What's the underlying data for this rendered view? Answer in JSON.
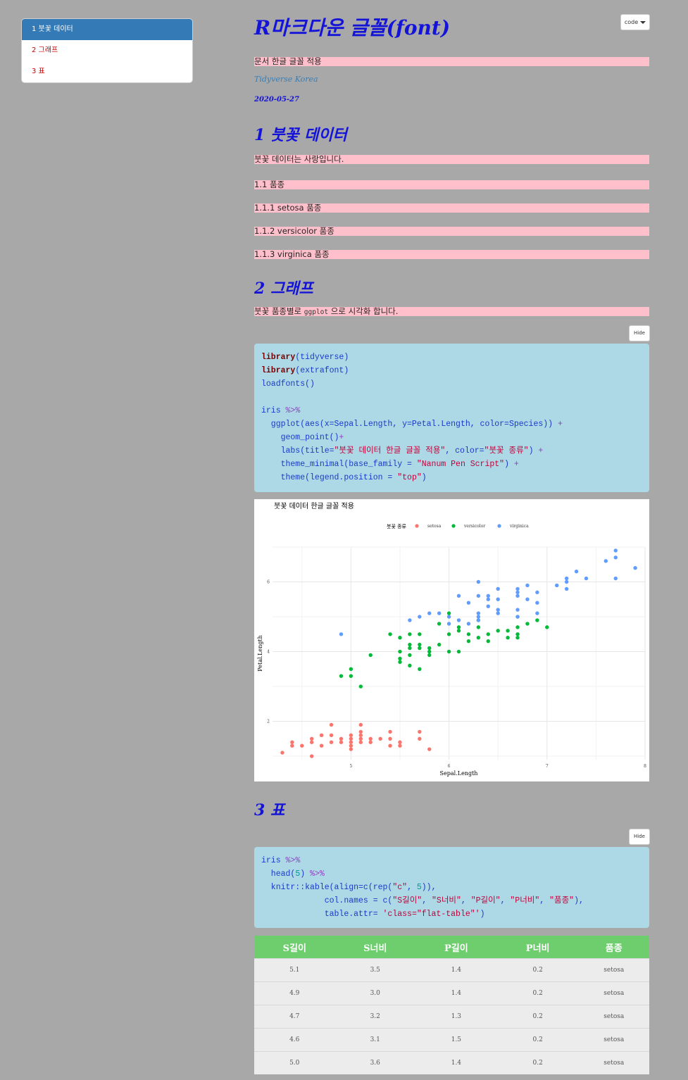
{
  "toc": {
    "items": [
      {
        "label": "1 붓꽃 데이터",
        "active": true
      },
      {
        "label": "2 그래프",
        "active": false
      },
      {
        "label": "3 표",
        "active": false
      }
    ]
  },
  "header": {
    "title": "R마크다운 글꼴(font)",
    "code_button": "code",
    "subtitle": "문서 한글 글꼴 적용",
    "author": "Tidyverse Korea",
    "date": "2020-05-27"
  },
  "section1": {
    "heading": "1 붓꽃 데이터",
    "intro": "붓꽃 데이터는 사랑입니다.",
    "sub1": "1.1 품종",
    "sub11": "1.1.1 setosa 품종",
    "sub12": "1.1.2 versicolor 품종",
    "sub13": "1.1.3 virginica 품종"
  },
  "section2": {
    "heading": "2 그래프",
    "text_before": "붓꽃 품종별로 ",
    "inline_code": "ggplot",
    "text_after": " 으로 시각화 합니다.",
    "hide_button": "Hide",
    "code_lines": [
      [
        [
          "kw",
          "library"
        ],
        [
          "",
          "(tidyverse)"
        ]
      ],
      [
        [
          "kw",
          "library"
        ],
        [
          "",
          "(extrafont)"
        ]
      ],
      [
        [
          "",
          "loadfonts()"
        ]
      ],
      [
        [
          "",
          ""
        ]
      ],
      [
        [
          "",
          "iris "
        ],
        [
          "op",
          "%>%"
        ]
      ],
      [
        [
          "",
          "  ggplot(aes(x=Sepal.Length, y=Petal.Length, color=Species)) "
        ],
        [
          "op",
          "+"
        ]
      ],
      [
        [
          "",
          "    geom_point()"
        ],
        [
          "op",
          "+"
        ]
      ],
      [
        [
          "",
          "    labs(title="
        ],
        [
          "str",
          "\"붓꽃 데이터 한글 글꼴 적용\""
        ],
        [
          "",
          ", color="
        ],
        [
          "str",
          "\"붓꽃 종류\""
        ],
        [
          "",
          ") "
        ],
        [
          "op",
          "+"
        ]
      ],
      [
        [
          "",
          "    theme_minimal(base_family = "
        ],
        [
          "str",
          "\"Nanum Pen Script\""
        ],
        [
          "",
          ") "
        ],
        [
          "op",
          "+"
        ]
      ],
      [
        [
          "",
          "    theme(legend.position = "
        ],
        [
          "str",
          "\"top\""
        ],
        [
          "",
          ")"
        ]
      ]
    ]
  },
  "chart_data": {
    "type": "scatter",
    "title": "붓꽃 데이터 한글 글꼴 적용",
    "xlabel": "Sepal.Length",
    "ylabel": "Petal.Length",
    "legend_title": "붓꽃 종류",
    "legend_position": "top",
    "x_ticks": [
      5,
      6,
      7,
      8
    ],
    "y_ticks": [
      2,
      4,
      6
    ],
    "xlim": [
      4.2,
      8.0
    ],
    "ylim": [
      0.9,
      7.0
    ],
    "grid": true,
    "series": [
      {
        "name": "setosa",
        "color": "#f8766d",
        "points": [
          [
            4.3,
            1.1
          ],
          [
            4.4,
            1.3
          ],
          [
            4.4,
            1.4
          ],
          [
            4.5,
            1.3
          ],
          [
            4.6,
            1.4
          ],
          [
            4.6,
            1.5
          ],
          [
            4.6,
            1.0
          ],
          [
            4.7,
            1.3
          ],
          [
            4.7,
            1.6
          ],
          [
            4.8,
            1.4
          ],
          [
            4.8,
            1.6
          ],
          [
            4.8,
            1.9
          ],
          [
            4.9,
            1.4
          ],
          [
            4.9,
            1.5
          ],
          [
            5.0,
            1.4
          ],
          [
            5.0,
            1.5
          ],
          [
            5.0,
            1.6
          ],
          [
            5.0,
            1.2
          ],
          [
            5.0,
            1.3
          ],
          [
            5.1,
            1.4
          ],
          [
            5.1,
            1.5
          ],
          [
            5.1,
            1.7
          ],
          [
            5.1,
            1.9
          ],
          [
            5.1,
            1.6
          ],
          [
            5.2,
            1.5
          ],
          [
            5.2,
            1.4
          ],
          [
            5.3,
            1.5
          ],
          [
            5.4,
            1.3
          ],
          [
            5.4,
            1.5
          ],
          [
            5.4,
            1.7
          ],
          [
            5.5,
            1.3
          ],
          [
            5.5,
            1.4
          ],
          [
            5.7,
            1.5
          ],
          [
            5.7,
            1.7
          ],
          [
            5.8,
            1.2
          ]
        ]
      },
      {
        "name": "versicolor",
        "color": "#00ba38",
        "points": [
          [
            4.9,
            3.3
          ],
          [
            5.0,
            3.3
          ],
          [
            5.0,
            3.5
          ],
          [
            5.1,
            3.0
          ],
          [
            5.2,
            3.9
          ],
          [
            5.4,
            4.5
          ],
          [
            5.5,
            3.7
          ],
          [
            5.5,
            3.8
          ],
          [
            5.5,
            4.0
          ],
          [
            5.5,
            4.4
          ],
          [
            5.6,
            3.6
          ],
          [
            5.6,
            3.9
          ],
          [
            5.6,
            4.1
          ],
          [
            5.6,
            4.2
          ],
          [
            5.6,
            4.5
          ],
          [
            5.7,
            3.5
          ],
          [
            5.7,
            4.1
          ],
          [
            5.7,
            4.2
          ],
          [
            5.7,
            4.5
          ],
          [
            5.8,
            3.9
          ],
          [
            5.8,
            4.0
          ],
          [
            5.8,
            4.1
          ],
          [
            5.9,
            4.2
          ],
          [
            5.9,
            4.8
          ],
          [
            6.0,
            4.0
          ],
          [
            6.0,
            4.5
          ],
          [
            6.0,
            5.1
          ],
          [
            6.1,
            4.0
          ],
          [
            6.1,
            4.6
          ],
          [
            6.1,
            4.7
          ],
          [
            6.2,
            4.3
          ],
          [
            6.2,
            4.5
          ],
          [
            6.3,
            4.4
          ],
          [
            6.3,
            4.7
          ],
          [
            6.3,
            4.9
          ],
          [
            6.4,
            4.3
          ],
          [
            6.4,
            4.5
          ],
          [
            6.5,
            4.6
          ],
          [
            6.6,
            4.4
          ],
          [
            6.6,
            4.6
          ],
          [
            6.7,
            4.4
          ],
          [
            6.7,
            4.5
          ],
          [
            6.7,
            4.7
          ],
          [
            6.7,
            5.0
          ],
          [
            6.8,
            4.8
          ],
          [
            6.9,
            4.9
          ],
          [
            7.0,
            4.7
          ]
        ]
      },
      {
        "name": "virginica",
        "color": "#619cff",
        "points": [
          [
            4.9,
            4.5
          ],
          [
            5.6,
            4.9
          ],
          [
            5.7,
            5.0
          ],
          [
            5.8,
            5.1
          ],
          [
            5.9,
            5.1
          ],
          [
            6.0,
            4.8
          ],
          [
            6.0,
            5.0
          ],
          [
            6.1,
            4.9
          ],
          [
            6.1,
            5.6
          ],
          [
            6.2,
            4.8
          ],
          [
            6.2,
            5.4
          ],
          [
            6.3,
            4.9
          ],
          [
            6.3,
            5.0
          ],
          [
            6.3,
            5.1
          ],
          [
            6.3,
            5.6
          ],
          [
            6.3,
            6.0
          ],
          [
            6.4,
            5.3
          ],
          [
            6.4,
            5.5
          ],
          [
            6.4,
            5.6
          ],
          [
            6.5,
            5.1
          ],
          [
            6.5,
            5.2
          ],
          [
            6.5,
            5.5
          ],
          [
            6.5,
            5.8
          ],
          [
            6.7,
            5.0
          ],
          [
            6.7,
            5.2
          ],
          [
            6.7,
            5.6
          ],
          [
            6.7,
            5.7
          ],
          [
            6.7,
            5.8
          ],
          [
            6.8,
            5.5
          ],
          [
            6.8,
            5.9
          ],
          [
            6.9,
            5.1
          ],
          [
            6.9,
            5.4
          ],
          [
            6.9,
            5.7
          ],
          [
            7.1,
            5.9
          ],
          [
            7.2,
            5.8
          ],
          [
            7.2,
            6.0
          ],
          [
            7.2,
            6.1
          ],
          [
            7.3,
            6.3
          ],
          [
            7.4,
            6.1
          ],
          [
            7.6,
            6.6
          ],
          [
            7.7,
            6.1
          ],
          [
            7.7,
            6.7
          ],
          [
            7.7,
            6.9
          ],
          [
            7.9,
            6.4
          ]
        ]
      }
    ]
  },
  "section3": {
    "heading": "3 표",
    "hide_button": "Hide",
    "code_lines": [
      [
        [
          "",
          "iris "
        ],
        [
          "op",
          "%>%"
        ]
      ],
      [
        [
          "",
          "  head("
        ],
        [
          "num",
          "5"
        ],
        [
          "",
          ") "
        ],
        [
          "op",
          "%>%"
        ]
      ],
      [
        [
          "",
          "  knitr::kable(align=c(rep("
        ],
        [
          "str",
          "\"c\""
        ],
        [
          "",
          ", "
        ],
        [
          "num",
          "5"
        ],
        [
          "",
          ")),"
        ]
      ],
      [
        [
          "",
          "             col.names = c("
        ],
        [
          "str",
          "\"S길이\""
        ],
        [
          "",
          ", "
        ],
        [
          "str",
          "\"S너비\""
        ],
        [
          "",
          ", "
        ],
        [
          "str",
          "\"P길이\""
        ],
        [
          "",
          ", "
        ],
        [
          "str",
          "\"P너비\""
        ],
        [
          "",
          ", "
        ],
        [
          "str",
          "\"품종\""
        ],
        [
          "",
          "),"
        ]
      ],
      [
        [
          "",
          "             table.attr= "
        ],
        [
          "str",
          "'class=\"flat-table\"'"
        ],
        [
          "",
          ")"
        ]
      ]
    ],
    "table": {
      "headers": [
        "S길이",
        "S너비",
        "P길이",
        "P너비",
        "품종"
      ],
      "rows": [
        [
          "5.1",
          "3.5",
          "1.4",
          "0.2",
          "setosa"
        ],
        [
          "4.9",
          "3.0",
          "1.4",
          "0.2",
          "setosa"
        ],
        [
          "4.7",
          "3.2",
          "1.3",
          "0.2",
          "setosa"
        ],
        [
          "4.6",
          "3.1",
          "1.5",
          "0.2",
          "setosa"
        ],
        [
          "5.0",
          "3.6",
          "1.4",
          "0.2",
          "setosa"
        ]
      ]
    }
  }
}
